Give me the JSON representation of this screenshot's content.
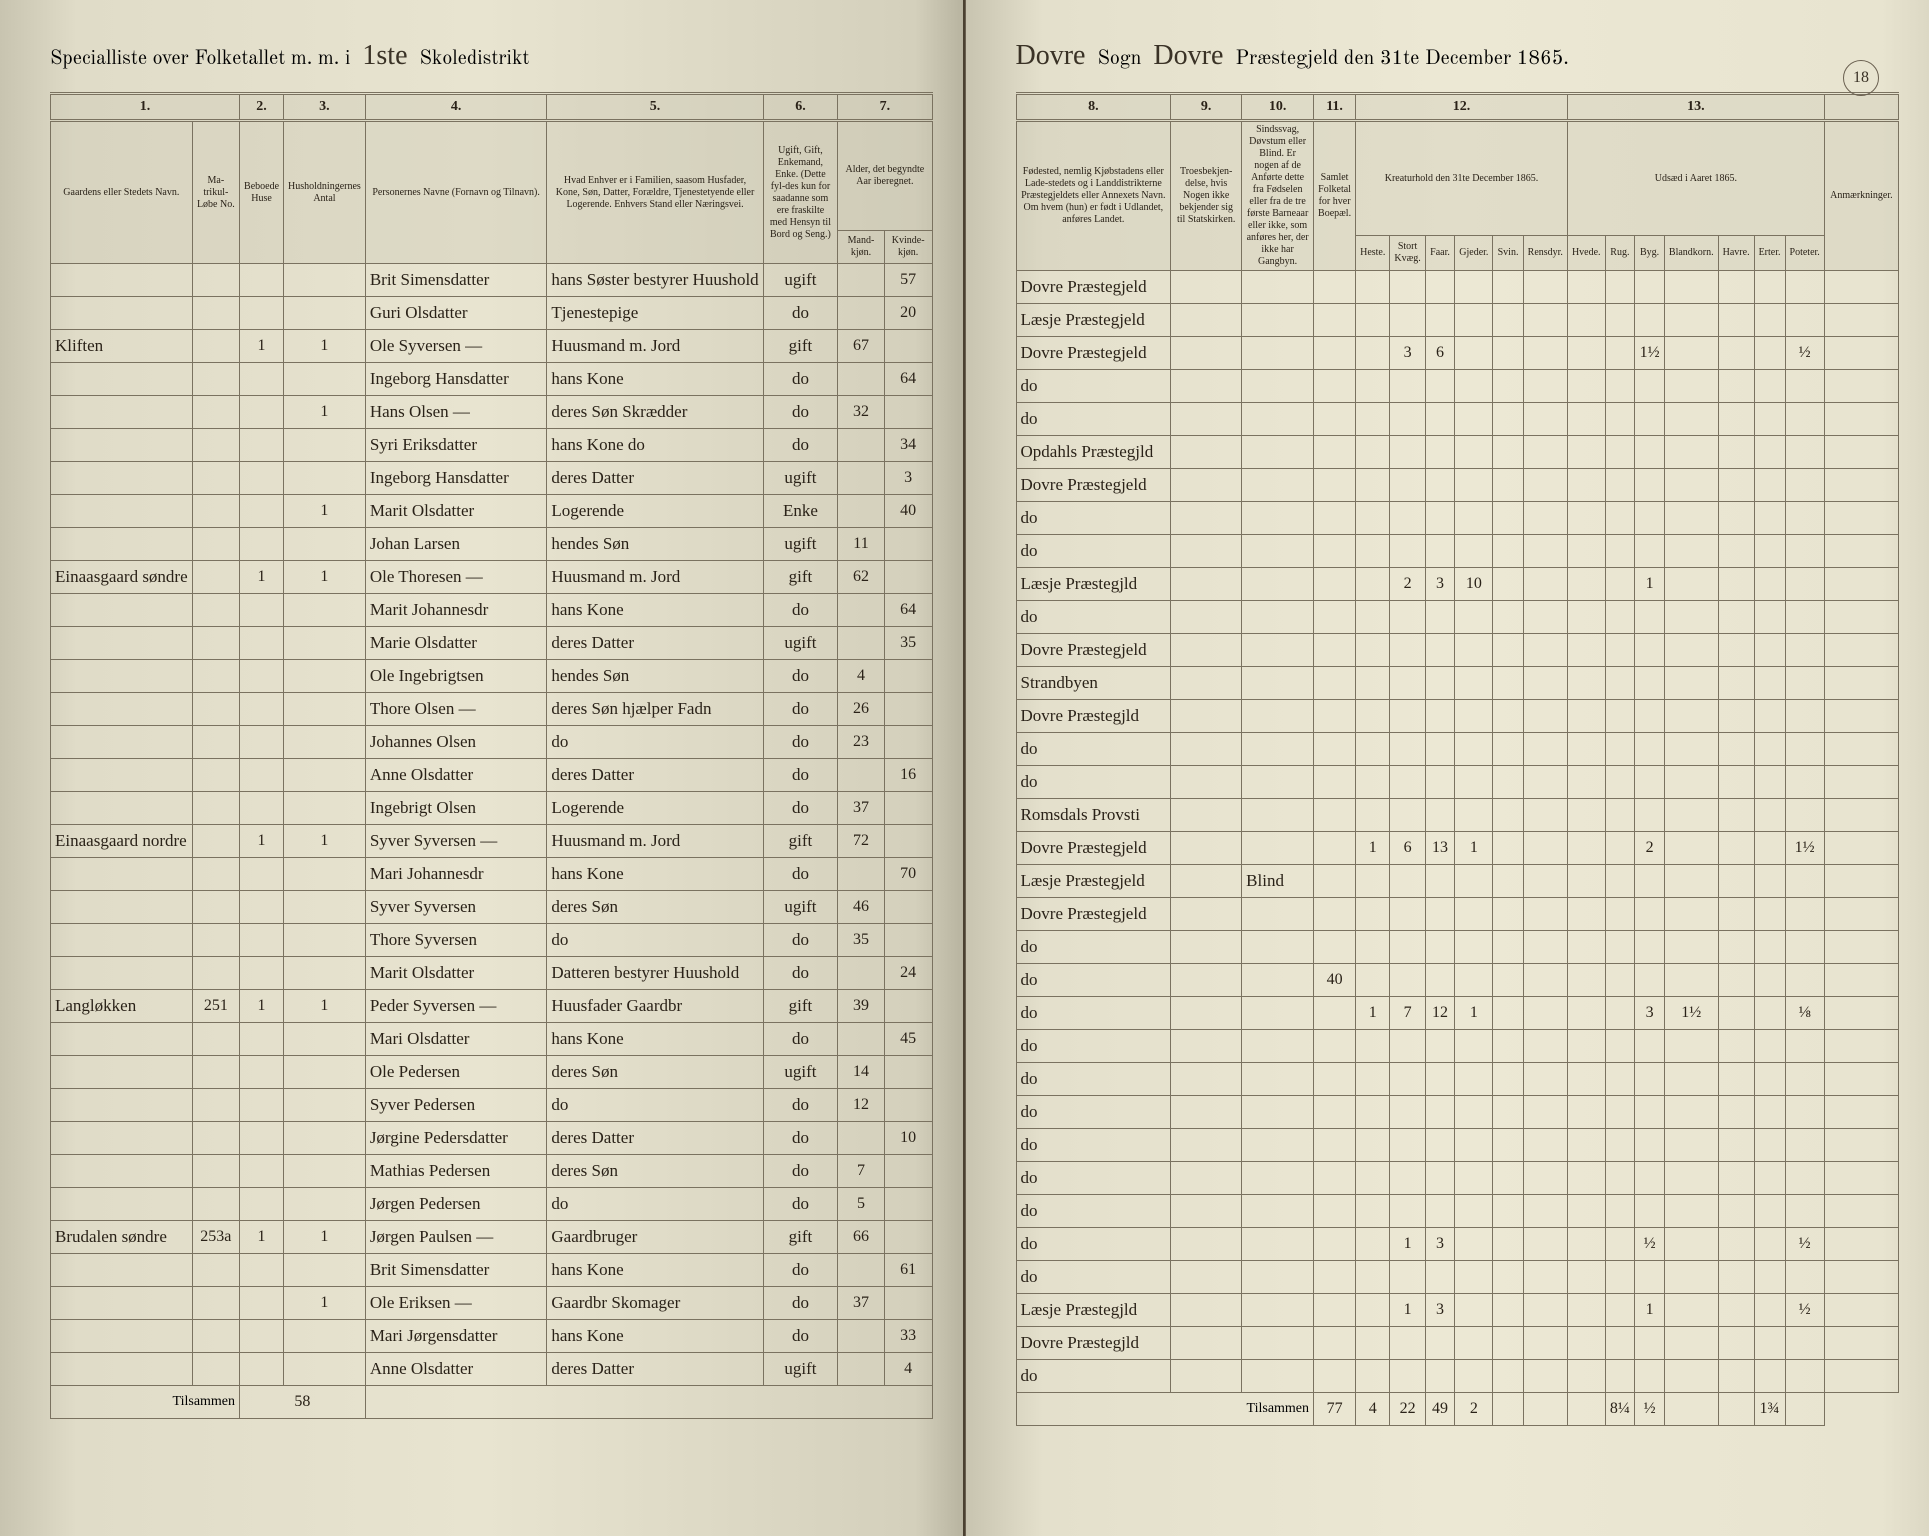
{
  "page_number": "18",
  "header_left": {
    "printed1": "Specialliste over Folketallet m. m. i",
    "script1": "1ste",
    "printed2": "Skoledistrikt"
  },
  "header_right": {
    "script1": "Dovre",
    "printed1": "Sogn",
    "script2": "Dovre",
    "printed2": "Præstegjeld den 31te December 1865."
  },
  "col_numbers_left": [
    "1.",
    "2.",
    "3.",
    "4.",
    "5.",
    "6.",
    "7."
  ],
  "col_numbers_right": [
    "8.",
    "9.",
    "10.",
    "11.",
    "12.",
    "13."
  ],
  "col_heads_left": {
    "c1": "Gaardens eller Stedets Navn.",
    "c1b": "Ma-trikul-Løbe No.",
    "c2": "Beboede Huse",
    "c3": "Husholdningernes Antal",
    "c4": "Personernes Navne (Fornavn og Tilnavn).",
    "c5": "Hvad Enhver er i Familien, saasom Husfader, Kone, Søn, Datter, Forældre, Tjenestetyende eller Logerende. Enhvers Stand eller Næringsvei.",
    "c6": "Ugift, Gift, Enkemand, Enke. (Dette fyl-des kun for saadanne som ere fraskilte med Hensyn til Bord og Seng.)",
    "c7": "Alder, det begyndte Aar iberegnet.",
    "c7a": "Mand-kjøn.",
    "c7b": "Kvinde-kjøn."
  },
  "col_heads_right": {
    "c8": "Fødested, nemlig Kjøbstadens eller Lade-stedets og i Landdistrikterne Præstegjeldets eller Annexets Navn. Om hvem (hun) er født i Udlandet, anføres Landet.",
    "c9": "Troesbekjen-delse, hvis Nogen ikke bekjender sig til Statskirken.",
    "c10": "Sindssvag, Døvstum eller Blind. Er nogen af de Anførte dette fra Fødselen eller fra de tre første Barneaar eller ikke, som anføres her, der ikke har Gangbyn.",
    "c11": "Samlet Folketal for hver Boepæl.",
    "c12": "Kreaturhold den 31te December 1865.",
    "c12a": "Heste.",
    "c12b": "Stort Kvæg.",
    "c12c": "Faar.",
    "c12d": "Gjeder.",
    "c12e": "Svin.",
    "c12f": "Rensdyr.",
    "c13": "Udsæd i Aaret 1865.",
    "c13a": "Hvede.",
    "c13b": "Rug.",
    "c13c": "Byg.",
    "c13d": "Blandkorn.",
    "c13e": "Havre.",
    "c13f": "Erter.",
    "c13g": "Poteter.",
    "c14": "Anmærkninger."
  },
  "rows": [
    {
      "gaard": "",
      "mat": "",
      "hus": "",
      "hush": "",
      "navn": "Brit Simensdatter",
      "fam": "hans Søster bestyrer Huushold",
      "stand": "ugift",
      "mk": "",
      "kk": "57",
      "fod": "Dovre Præstegjeld",
      "tro": "",
      "sind": "",
      "folk": "",
      "kre": [
        "",
        "",
        "",
        "",
        "",
        ""
      ],
      "uds": [
        "",
        "",
        "",
        "",
        "",
        "",
        ""
      ]
    },
    {
      "gaard": "",
      "mat": "",
      "hus": "",
      "hush": "",
      "navn": "Guri Olsdatter",
      "fam": "Tjenestepige",
      "stand": "do",
      "mk": "",
      "kk": "20",
      "fod": "Læsje Præstegjeld",
      "tro": "",
      "sind": "",
      "folk": "",
      "kre": [
        "",
        "",
        "",
        "",
        "",
        ""
      ],
      "uds": [
        "",
        "",
        "",
        "",
        "",
        "",
        ""
      ]
    },
    {
      "gaard": "Kliften",
      "mat": "",
      "hus": "1",
      "hush": "1",
      "navn": "Ole Syversen  —",
      "fam": "Huusmand m. Jord",
      "stand": "gift",
      "mk": "67",
      "kk": "",
      "fod": "Dovre Præstegjeld",
      "tro": "",
      "sind": "",
      "folk": "",
      "kre": [
        "",
        "3",
        "6",
        "",
        "",
        ""
      ],
      "uds": [
        "",
        "",
        "1½",
        "",
        "",
        "",
        "½"
      ]
    },
    {
      "gaard": "",
      "mat": "",
      "hus": "",
      "hush": "",
      "navn": "Ingeborg Hansdatter",
      "fam": "hans Kone",
      "stand": "do",
      "mk": "",
      "kk": "64",
      "fod": "do",
      "tro": "",
      "sind": "",
      "folk": "",
      "kre": [
        "",
        "",
        "",
        "",
        "",
        ""
      ],
      "uds": [
        "",
        "",
        "",
        "",
        "",
        "",
        ""
      ]
    },
    {
      "gaard": "",
      "mat": "",
      "hus": "",
      "hush": "1",
      "navn": "Hans Olsen  —",
      "fam": "deres Søn  Skrædder",
      "stand": "do",
      "mk": "32",
      "kk": "",
      "fod": "do",
      "tro": "",
      "sind": "",
      "folk": "",
      "kre": [
        "",
        "",
        "",
        "",
        "",
        ""
      ],
      "uds": [
        "",
        "",
        "",
        "",
        "",
        "",
        ""
      ]
    },
    {
      "gaard": "",
      "mat": "",
      "hus": "",
      "hush": "",
      "navn": "Syri Eriksdatter",
      "fam": "hans Kone   do",
      "stand": "do",
      "mk": "",
      "kk": "34",
      "fod": "Opdahls Præstegjld",
      "tro": "",
      "sind": "",
      "folk": "",
      "kre": [
        "",
        "",
        "",
        "",
        "",
        ""
      ],
      "uds": [
        "",
        "",
        "",
        "",
        "",
        "",
        ""
      ]
    },
    {
      "gaard": "",
      "mat": "",
      "hus": "",
      "hush": "",
      "navn": "Ingeborg Hansdatter",
      "fam": "deres Datter",
      "stand": "ugift",
      "mk": "",
      "kk": "3",
      "fod": "Dovre Præstegjeld",
      "tro": "",
      "sind": "",
      "folk": "",
      "kre": [
        "",
        "",
        "",
        "",
        "",
        ""
      ],
      "uds": [
        "",
        "",
        "",
        "",
        "",
        "",
        ""
      ]
    },
    {
      "gaard": "",
      "mat": "",
      "hus": "",
      "hush": "1",
      "navn": "Marit Olsdatter",
      "fam": "Logerende",
      "stand": "Enke",
      "mk": "",
      "kk": "40",
      "fod": "do",
      "tro": "",
      "sind": "",
      "folk": "",
      "kre": [
        "",
        "",
        "",
        "",
        "",
        ""
      ],
      "uds": [
        "",
        "",
        "",
        "",
        "",
        "",
        ""
      ]
    },
    {
      "gaard": "",
      "mat": "",
      "hus": "",
      "hush": "",
      "navn": "Johan Larsen",
      "fam": "hendes Søn",
      "stand": "ugift",
      "mk": "11",
      "kk": "",
      "fod": "do",
      "tro": "",
      "sind": "",
      "folk": "",
      "kre": [
        "",
        "",
        "",
        "",
        "",
        ""
      ],
      "uds": [
        "",
        "",
        "",
        "",
        "",
        "",
        ""
      ]
    },
    {
      "gaard": "Einaasgaard søndre",
      "mat": "",
      "hus": "1",
      "hush": "1",
      "navn": "Ole Thoresen  —",
      "fam": "Huusmand m. Jord",
      "stand": "gift",
      "mk": "62",
      "kk": "",
      "fod": "Læsje Præstegjld",
      "tro": "",
      "sind": "",
      "folk": "",
      "kre": [
        "",
        "2",
        "3",
        "10",
        "",
        ""
      ],
      "uds": [
        "",
        "",
        "1",
        "",
        "",
        "",
        ""
      ]
    },
    {
      "gaard": "",
      "mat": "",
      "hus": "",
      "hush": "",
      "navn": "Marit Johannesdr",
      "fam": "hans Kone",
      "stand": "do",
      "mk": "",
      "kk": "64",
      "fod": "do",
      "tro": "",
      "sind": "",
      "folk": "",
      "kre": [
        "",
        "",
        "",
        "",
        "",
        ""
      ],
      "uds": [
        "",
        "",
        "",
        "",
        "",
        "",
        ""
      ]
    },
    {
      "gaard": "",
      "mat": "",
      "hus": "",
      "hush": "",
      "navn": "Marie Olsdatter",
      "fam": "deres Datter",
      "stand": "ugift",
      "mk": "",
      "kk": "35",
      "fod": "Dovre Præstegjeld",
      "tro": "",
      "sind": "",
      "folk": "",
      "kre": [
        "",
        "",
        "",
        "",
        "",
        ""
      ],
      "uds": [
        "",
        "",
        "",
        "",
        "",
        "",
        ""
      ]
    },
    {
      "gaard": "",
      "mat": "",
      "hus": "",
      "hush": "",
      "navn": "Ole Ingebrigtsen",
      "fam": "hendes Søn",
      "stand": "do",
      "mk": "4",
      "kk": "",
      "fod": "Strandbyen",
      "tro": "",
      "sind": "",
      "folk": "",
      "kre": [
        "",
        "",
        "",
        "",
        "",
        ""
      ],
      "uds": [
        "",
        "",
        "",
        "",
        "",
        "",
        ""
      ]
    },
    {
      "gaard": "",
      "mat": "",
      "hus": "",
      "hush": "",
      "navn": "Thore Olsen  —",
      "fam": "deres Søn hjælper Fadn",
      "stand": "do",
      "mk": "26",
      "kk": "",
      "fod": "Dovre Præstegjld",
      "tro": "",
      "sind": "",
      "folk": "",
      "kre": [
        "",
        "",
        "",
        "",
        "",
        ""
      ],
      "uds": [
        "",
        "",
        "",
        "",
        "",
        "",
        ""
      ]
    },
    {
      "gaard": "",
      "mat": "",
      "hus": "",
      "hush": "",
      "navn": "Johannes Olsen",
      "fam": "do",
      "stand": "do",
      "mk": "23",
      "kk": "",
      "fod": "do",
      "tro": "",
      "sind": "",
      "folk": "",
      "kre": [
        "",
        "",
        "",
        "",
        "",
        ""
      ],
      "uds": [
        "",
        "",
        "",
        "",
        "",
        "",
        ""
      ]
    },
    {
      "gaard": "",
      "mat": "",
      "hus": "",
      "hush": "",
      "navn": "Anne Olsdatter",
      "fam": "deres Datter",
      "stand": "do",
      "mk": "",
      "kk": "16",
      "fod": "do",
      "tro": "",
      "sind": "",
      "folk": "",
      "kre": [
        "",
        "",
        "",
        "",
        "",
        ""
      ],
      "uds": [
        "",
        "",
        "",
        "",
        "",
        "",
        ""
      ]
    },
    {
      "gaard": "",
      "mat": "",
      "hus": "",
      "hush": "",
      "navn": "Ingebrigt Olsen",
      "fam": "Logerende",
      "stand": "do",
      "mk": "37",
      "kk": "",
      "fod": "Romsdals Provsti",
      "tro": "",
      "sind": "",
      "folk": "",
      "kre": [
        "",
        "",
        "",
        "",
        "",
        ""
      ],
      "uds": [
        "",
        "",
        "",
        "",
        "",
        "",
        ""
      ]
    },
    {
      "gaard": "Einaasgaard nordre",
      "mat": "",
      "hus": "1",
      "hush": "1",
      "navn": "Syver Syversen  —",
      "fam": "Huusmand m. Jord",
      "stand": "gift",
      "mk": "72",
      "kk": "",
      "fod": "Dovre Præstegjeld",
      "tro": "",
      "sind": "",
      "folk": "",
      "kre": [
        "1",
        "6",
        "13",
        "1",
        "",
        ""
      ],
      "uds": [
        "",
        "",
        "2",
        "",
        "",
        "",
        "1½"
      ]
    },
    {
      "gaard": "",
      "mat": "",
      "hus": "",
      "hush": "",
      "navn": "Mari Johannesdr",
      "fam": "hans Kone",
      "stand": "do",
      "mk": "",
      "kk": "70",
      "fod": "Læsje Præstegjeld",
      "tro": "",
      "sind": "Blind",
      "folk": "",
      "kre": [
        "",
        "",
        "",
        "",
        "",
        ""
      ],
      "uds": [
        "",
        "",
        "",
        "",
        "",
        "",
        ""
      ]
    },
    {
      "gaard": "",
      "mat": "",
      "hus": "",
      "hush": "",
      "navn": "Syver Syversen",
      "fam": "deres Søn",
      "stand": "ugift",
      "mk": "46",
      "kk": "",
      "fod": "Dovre Præstegjeld",
      "tro": "",
      "sind": "",
      "folk": "",
      "kre": [
        "",
        "",
        "",
        "",
        "",
        ""
      ],
      "uds": [
        "",
        "",
        "",
        "",
        "",
        "",
        ""
      ]
    },
    {
      "gaard": "",
      "mat": "",
      "hus": "",
      "hush": "",
      "navn": "Thore Syversen",
      "fam": "do",
      "stand": "do",
      "mk": "35",
      "kk": "",
      "fod": "do",
      "tro": "",
      "sind": "",
      "folk": "",
      "kre": [
        "",
        "",
        "",
        "",
        "",
        ""
      ],
      "uds": [
        "",
        "",
        "",
        "",
        "",
        "",
        ""
      ]
    },
    {
      "gaard": "",
      "mat": "",
      "hus": "",
      "hush": "",
      "navn": "Marit Olsdatter",
      "fam": "Datteren bestyrer Huushold",
      "stand": "do",
      "mk": "",
      "kk": "24",
      "fod": "do",
      "tro": "",
      "sind": "",
      "folk": "40",
      "kre": [
        "",
        "",
        "",
        "",
        "",
        ""
      ],
      "uds": [
        "",
        "",
        "",
        "",
        "",
        "",
        ""
      ]
    },
    {
      "gaard": "Langløkken",
      "mat": "251",
      "hus": "1",
      "hush": "1",
      "navn": "Peder Syversen  —",
      "fam": "Huusfader Gaardbr",
      "stand": "gift",
      "mk": "39",
      "kk": "",
      "fod": "do",
      "tro": "",
      "sind": "",
      "folk": "",
      "kre": [
        "1",
        "7",
        "12",
        "1",
        "",
        ""
      ],
      "uds": [
        "",
        "",
        "3",
        "1½",
        "",
        "",
        "⅛"
      ]
    },
    {
      "gaard": "",
      "mat": "",
      "hus": "",
      "hush": "",
      "navn": "Mari Olsdatter",
      "fam": "hans Kone",
      "stand": "do",
      "mk": "",
      "kk": "45",
      "fod": "do",
      "tro": "",
      "sind": "",
      "folk": "",
      "kre": [
        "",
        "",
        "",
        "",
        "",
        ""
      ],
      "uds": [
        "",
        "",
        "",
        "",
        "",
        "",
        ""
      ]
    },
    {
      "gaard": "",
      "mat": "",
      "hus": "",
      "hush": "",
      "navn": "Ole Pedersen",
      "fam": "deres Søn",
      "stand": "ugift",
      "mk": "14",
      "kk": "",
      "fod": "do",
      "tro": "",
      "sind": "",
      "folk": "",
      "kre": [
        "",
        "",
        "",
        "",
        "",
        ""
      ],
      "uds": [
        "",
        "",
        "",
        "",
        "",
        "",
        ""
      ]
    },
    {
      "gaard": "",
      "mat": "",
      "hus": "",
      "hush": "",
      "navn": "Syver Pedersen",
      "fam": "do",
      "stand": "do",
      "mk": "12",
      "kk": "",
      "fod": "do",
      "tro": "",
      "sind": "",
      "folk": "",
      "kre": [
        "",
        "",
        "",
        "",
        "",
        ""
      ],
      "uds": [
        "",
        "",
        "",
        "",
        "",
        "",
        ""
      ]
    },
    {
      "gaard": "",
      "mat": "",
      "hus": "",
      "hush": "",
      "navn": "Jørgine Pedersdatter",
      "fam": "deres Datter",
      "stand": "do",
      "mk": "",
      "kk": "10",
      "fod": "do",
      "tro": "",
      "sind": "",
      "folk": "",
      "kre": [
        "",
        "",
        "",
        "",
        "",
        ""
      ],
      "uds": [
        "",
        "",
        "",
        "",
        "",
        "",
        ""
      ]
    },
    {
      "gaard": "",
      "mat": "",
      "hus": "",
      "hush": "",
      "navn": "Mathias Pedersen",
      "fam": "deres Søn",
      "stand": "do",
      "mk": "7",
      "kk": "",
      "fod": "do",
      "tro": "",
      "sind": "",
      "folk": "",
      "kre": [
        "",
        "",
        "",
        "",
        "",
        ""
      ],
      "uds": [
        "",
        "",
        "",
        "",
        "",
        "",
        ""
      ]
    },
    {
      "gaard": "",
      "mat": "",
      "hus": "",
      "hush": "",
      "navn": "Jørgen Pedersen",
      "fam": "do",
      "stand": "do",
      "mk": "5",
      "kk": "",
      "fod": "do",
      "tro": "",
      "sind": "",
      "folk": "",
      "kre": [
        "",
        "",
        "",
        "",
        "",
        ""
      ],
      "uds": [
        "",
        "",
        "",
        "",
        "",
        "",
        ""
      ]
    },
    {
      "gaard": "Brudalen søndre",
      "mat": "253a",
      "hus": "1",
      "hush": "1",
      "navn": "Jørgen Paulsen  —",
      "fam": "Gaardbruger",
      "stand": "gift",
      "mk": "66",
      "kk": "",
      "fod": "do",
      "tro": "",
      "sind": "",
      "folk": "",
      "kre": [
        "",
        "1",
        "3",
        "",
        "",
        ""
      ],
      "uds": [
        "",
        "",
        "½",
        "",
        "",
        "",
        "½"
      ]
    },
    {
      "gaard": "",
      "mat": "",
      "hus": "",
      "hush": "",
      "navn": "Brit Simensdatter",
      "fam": "hans Kone",
      "stand": "do",
      "mk": "",
      "kk": "61",
      "fod": "do",
      "tro": "",
      "sind": "",
      "folk": "",
      "kre": [
        "",
        "",
        "",
        "",
        "",
        ""
      ],
      "uds": [
        "",
        "",
        "",
        "",
        "",
        "",
        ""
      ]
    },
    {
      "gaard": "",
      "mat": "",
      "hus": "",
      "hush": "1",
      "navn": "Ole Eriksen  —",
      "fam": "Gaardbr  Skomager",
      "stand": "do",
      "mk": "37",
      "kk": "",
      "fod": "Læsje Præstegjld",
      "tro": "",
      "sind": "",
      "folk": "",
      "kre": [
        "",
        "1",
        "3",
        "",
        "",
        ""
      ],
      "uds": [
        "",
        "",
        "1",
        "",
        "",
        "",
        "½"
      ]
    },
    {
      "gaard": "",
      "mat": "",
      "hus": "",
      "hush": "",
      "navn": "Mari Jørgensdatter",
      "fam": "hans Kone",
      "stand": "do",
      "mk": "",
      "kk": "33",
      "fod": "Dovre Præstegjld",
      "tro": "",
      "sind": "",
      "folk": "",
      "kre": [
        "",
        "",
        "",
        "",
        "",
        ""
      ],
      "uds": [
        "",
        "",
        "",
        "",
        "",
        "",
        ""
      ]
    },
    {
      "gaard": "",
      "mat": "",
      "hus": "",
      "hush": "",
      "navn": "Anne Olsdatter",
      "fam": "deres Datter",
      "stand": "ugift",
      "mk": "",
      "kk": "4",
      "fod": "do",
      "tro": "",
      "sind": "",
      "folk": "",
      "kre": [
        "",
        "",
        "",
        "",
        "",
        ""
      ],
      "uds": [
        "",
        "",
        "",
        "",
        "",
        "",
        ""
      ]
    }
  ],
  "footer": {
    "label": "Tilsammen",
    "left_total": "58",
    "right_totals": [
      "77",
      "4",
      "22",
      "49",
      "2",
      "",
      "",
      "",
      "8¼",
      "½",
      "",
      "",
      "1¾"
    ]
  },
  "styling": {
    "paper_bg": "#e8e4d0",
    "ink": "#2a2218",
    "rule": "#7a7260",
    "script_font": "Brush Script MT",
    "print_font": "Times New Roman"
  }
}
